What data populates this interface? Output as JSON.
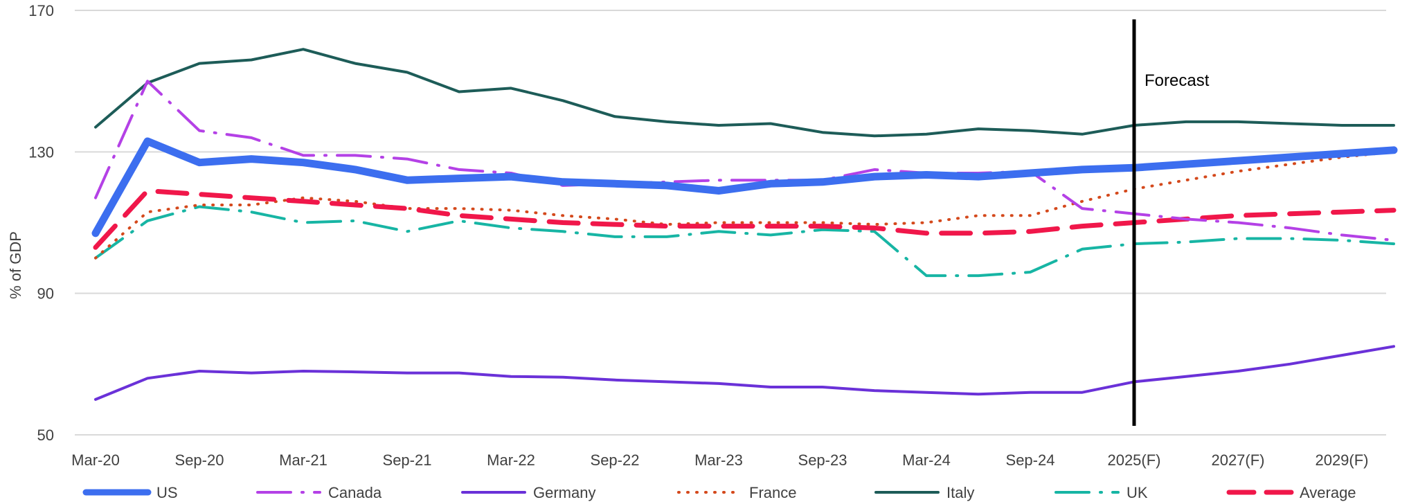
{
  "chart_data": {
    "type": "line",
    "ylabel": "% of GDP",
    "ylim": [
      50,
      170
    ],
    "yticks": [
      50,
      90,
      130,
      170
    ],
    "grid": true,
    "legend_position": "bottom",
    "annotation": "Forecast",
    "x_tick_labels": [
      "Mar-20",
      "Sep-20",
      "Mar-21",
      "Sep-21",
      "Mar-22",
      "Sep-22",
      "Mar-23",
      "Sep-23",
      "Mar-24",
      "Sep-24",
      "2025(F)",
      "2027(F)",
      "2029(F)"
    ],
    "x_tick_index": [
      0,
      2,
      4,
      6,
      8,
      10,
      12,
      14,
      16,
      18,
      20,
      22,
      24
    ],
    "forecast_index": 20,
    "series": [
      {
        "name": "US",
        "color": "#3C6EEF",
        "width": 11,
        "dash": "none",
        "values": [
          107,
          133,
          127,
          128,
          127,
          125,
          122,
          122.5,
          123,
          121.5,
          121,
          120.5,
          119,
          121,
          121.5,
          123,
          123.5,
          123,
          124,
          125,
          125.5,
          126.5,
          127.5,
          128.5,
          129.5,
          130.5
        ]
      },
      {
        "name": "Canada",
        "color": "#B441E6",
        "width": 4,
        "dash": "dash-dot",
        "values": [
          117,
          150,
          136,
          134,
          129,
          129,
          128,
          125,
          124,
          120.5,
          121,
          121.5,
          122,
          122,
          122,
          125,
          124,
          124,
          124.5,
          114,
          112.5,
          111,
          110,
          108.5,
          106.5,
          105
        ]
      },
      {
        "name": "Germany",
        "color": "#6A31D8",
        "width": 4,
        "dash": "none",
        "values": [
          60,
          66,
          68,
          67.5,
          68,
          67.8,
          67.5,
          67.5,
          66.5,
          66.3,
          65.5,
          65,
          64.5,
          63.5,
          63.5,
          62.5,
          62,
          61.5,
          62,
          62,
          65,
          66.5,
          68,
          70,
          72.5,
          75
        ]
      },
      {
        "name": "France",
        "color": "#D4491C",
        "width": 4,
        "dash": "dot",
        "values": [
          100,
          113,
          115,
          115,
          117,
          116,
          114,
          114,
          113.5,
          112,
          111,
          109.5,
          110,
          110,
          110,
          109.5,
          110,
          112,
          112,
          116,
          119.5,
          122,
          124.5,
          126.5,
          128.5,
          130
        ]
      },
      {
        "name": "Italy",
        "color": "#1D5C58",
        "width": 4,
        "dash": "none",
        "values": [
          137,
          149.5,
          155,
          156,
          159,
          155,
          152.5,
          147,
          148,
          144.5,
          140,
          138.5,
          137.5,
          138,
          135.5,
          134.5,
          135,
          136.5,
          136,
          135,
          137.5,
          138.5,
          138.5,
          138,
          137.5,
          137.5
        ]
      },
      {
        "name": "UK",
        "color": "#17B5A4",
        "width": 4,
        "dash": "dash-dot",
        "values": [
          100,
          110.5,
          114.5,
          113,
          110,
          110.5,
          107.5,
          110.5,
          108.5,
          107.5,
          106,
          106,
          107.5,
          106.5,
          108,
          107.5,
          95,
          95,
          96,
          102.5,
          104,
          104.5,
          105.5,
          105.5,
          105,
          104
        ]
      },
      {
        "name": "Average",
        "color": "#F0174A",
        "width": 7,
        "dash": "long-dash",
        "values": [
          103,
          119,
          118,
          117,
          116,
          115,
          114,
          112,
          111,
          110,
          109.5,
          109,
          109,
          109,
          109,
          108.5,
          107,
          107,
          107.5,
          109,
          110,
          111,
          112,
          112.5,
          113,
          113.5
        ]
      }
    ]
  }
}
